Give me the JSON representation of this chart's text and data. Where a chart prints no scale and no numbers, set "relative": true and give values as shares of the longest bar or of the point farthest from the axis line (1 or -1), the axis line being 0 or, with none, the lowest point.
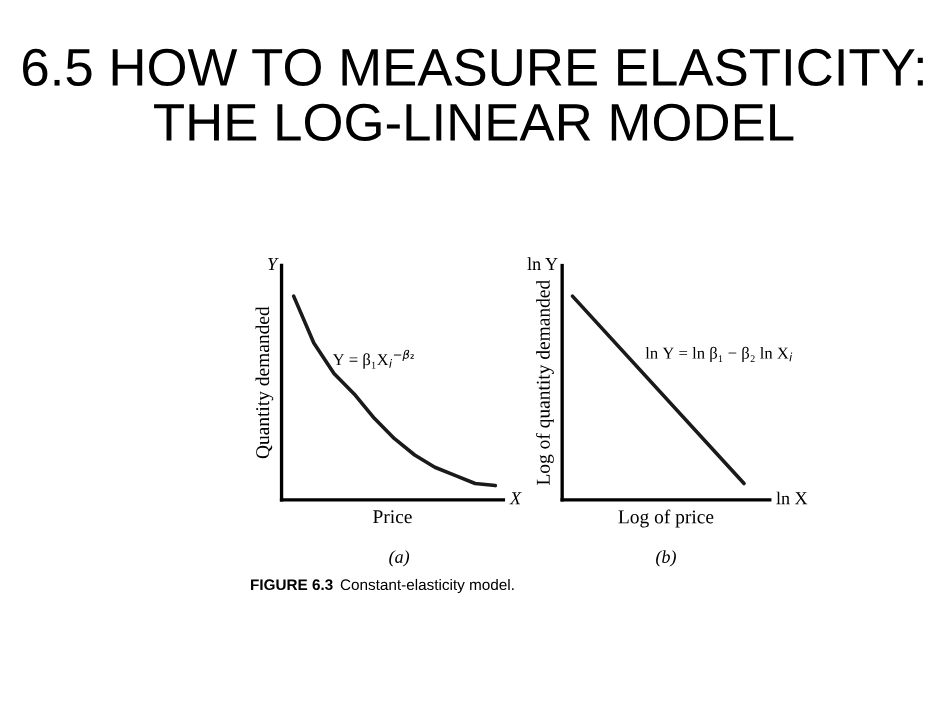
{
  "chart_data": [
    {
      "type": "line",
      "relative": true,
      "title": "6.5 HOW TO MEASURE ELASTICITY: THE LOG-LINEAR MODEL",
      "xlabel": "Price",
      "ylabel": "Quantity demanded",
      "categories": [
        null,
        null,
        null,
        null,
        null,
        null,
        null,
        null,
        null,
        null,
        null
      ],
      "series": [
        {
          "color": "#1a1a1a",
          "values": [
            1,
            0.77,
            0.62,
            0.52,
            0.4,
            0.3,
            0.22,
            0.16,
            0.12,
            0.08,
            0.07
          ]
        }
      ],
      "annotations": [
        "Y",
        "X",
        "Y = β₁X$_{i}$$^{−β₂}$",
        "(a)"
      ]
    },
    {
      "type": "line",
      "relative": true,
      "xlabel": "Log of price",
      "ylabel": "Log of quantity demanded",
      "categories": [
        null,
        null
      ],
      "series": [
        {
          "color": "#1a1a1a",
          "values": [
            1,
            0.08
          ]
        }
      ],
      "annotations": [
        "ln Y",
        "ln X",
        "ln Y = ln β₁ − β₂ ln X$_{i}$",
        "(b)",
        "FIGURE 6.3",
        "Constant-elasticity model."
      ]
    }
  ]
}
